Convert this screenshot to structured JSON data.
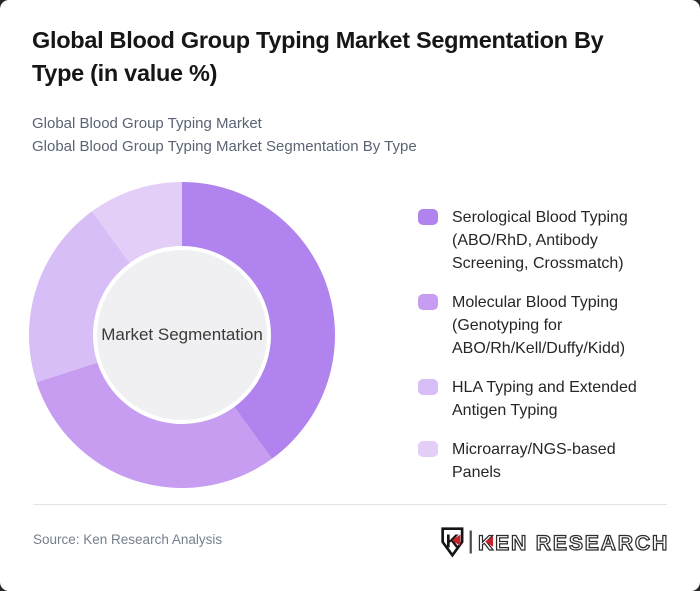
{
  "header": {
    "title": "Global Blood Group Typing Market Segmentation By\nType (in value %)",
    "subtitle_line1": "Global Blood Group Typing Market",
    "subtitle_line2": "Global Blood Group Typing Market Segmentation By Type"
  },
  "chart_data": {
    "type": "pie",
    "variant": "donut",
    "title": "Global Blood Group Typing Market Segmentation By Type (in value %)",
    "units": "value %",
    "center_label": "Market Segmentation",
    "start_angle_deg": 0,
    "direction": "clockwise",
    "legend_position": "right",
    "inner_radius_ratio": 0.58,
    "segments": [
      {
        "label": "Serological Blood Typing (ABO/RhD, Antibody Screening, Crossmatch)",
        "value": 40,
        "color": "#b183ee"
      },
      {
        "label": "Molecular Blood Typing (Genotyping for ABO/Rh/Kell/Duffy/Kidd)",
        "value": 30,
        "color": "#c69df1"
      },
      {
        "label": "HLA Typing and Extended Antigen Typing",
        "value": 20,
        "color": "#d8bef6"
      },
      {
        "label": "Microarray/NGS-based Panels",
        "value": 10,
        "color": "#e3cef8"
      }
    ],
    "center_circle_color": "#f0eff1"
  },
  "legend": {
    "items": [
      {
        "label": "Serological Blood Typing\n(ABO/RhD, Antibody\nScreening, Crossmatch)",
        "color": "#b183ee"
      },
      {
        "label": "Molecular Blood Typing\n(Genotyping for\nABO/Rh/Kell/Duffy/Kidd)",
        "color": "#c69df1"
      },
      {
        "label": "HLA Typing and Extended\nAntigen Typing",
        "color": "#d8bef6"
      },
      {
        "label": "Microarray/NGS-based Panels",
        "color": "#e3cef8"
      }
    ]
  },
  "footer": {
    "source_text": "Source: Ken Research Analysis",
    "logo": {
      "mark_letter": "K",
      "text": "KEN RESEARCH",
      "accent_color": "#c5222a",
      "text_color": "#2d2d2d"
    }
  }
}
